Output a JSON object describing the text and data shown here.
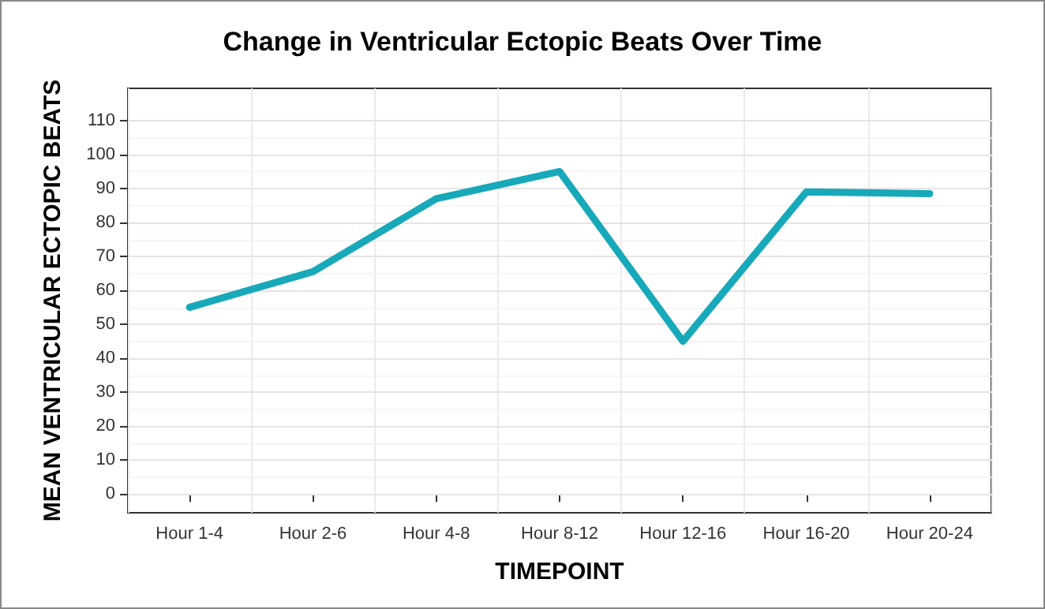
{
  "chart_data": {
    "type": "line",
    "title": "Change in Ventricular Ectopic Beats Over Time",
    "xlabel": "TIMEPOINT",
    "ylabel": "MEAN VENTRICULAR ECTOPIC BEATS",
    "categories": [
      "Hour 1-4",
      "Hour 2-6",
      "Hour 4-8",
      "Hour 8-12",
      "Hour 12-16",
      "Hour 16-20",
      "Hour 20-24"
    ],
    "series": [
      {
        "color": "#17a9b9",
        "values": [
          55,
          65.5,
          87,
          95,
          45,
          89,
          88.5
        ]
      }
    ],
    "ylim": [
      -5.5,
      119.5
    ],
    "yticks": [
      0,
      10,
      20,
      30,
      40,
      50,
      60,
      70,
      80,
      90,
      100,
      110
    ],
    "grid": true,
    "marker": "none",
    "line_style": "solid"
  }
}
